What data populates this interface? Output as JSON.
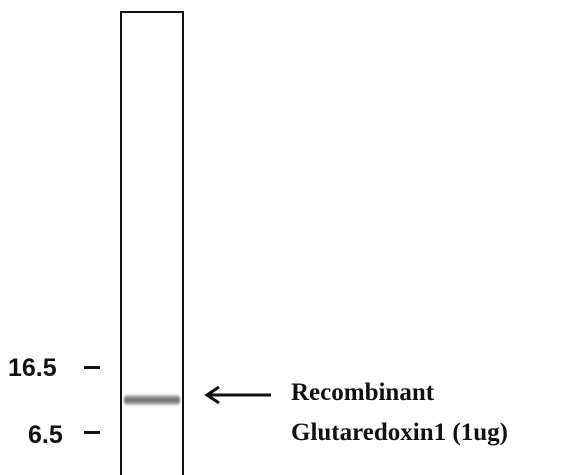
{
  "markers": [
    {
      "label": "16.5",
      "kda": 16.5
    },
    {
      "label": "6.5",
      "kda": 6.5
    }
  ],
  "band_label": {
    "line1": "Recombinant",
    "line2": "Glutaredoxin1 (1ug)"
  },
  "colors": {
    "ink": "#111111",
    "band": "#6f6f6f",
    "background": "#ffffff"
  }
}
